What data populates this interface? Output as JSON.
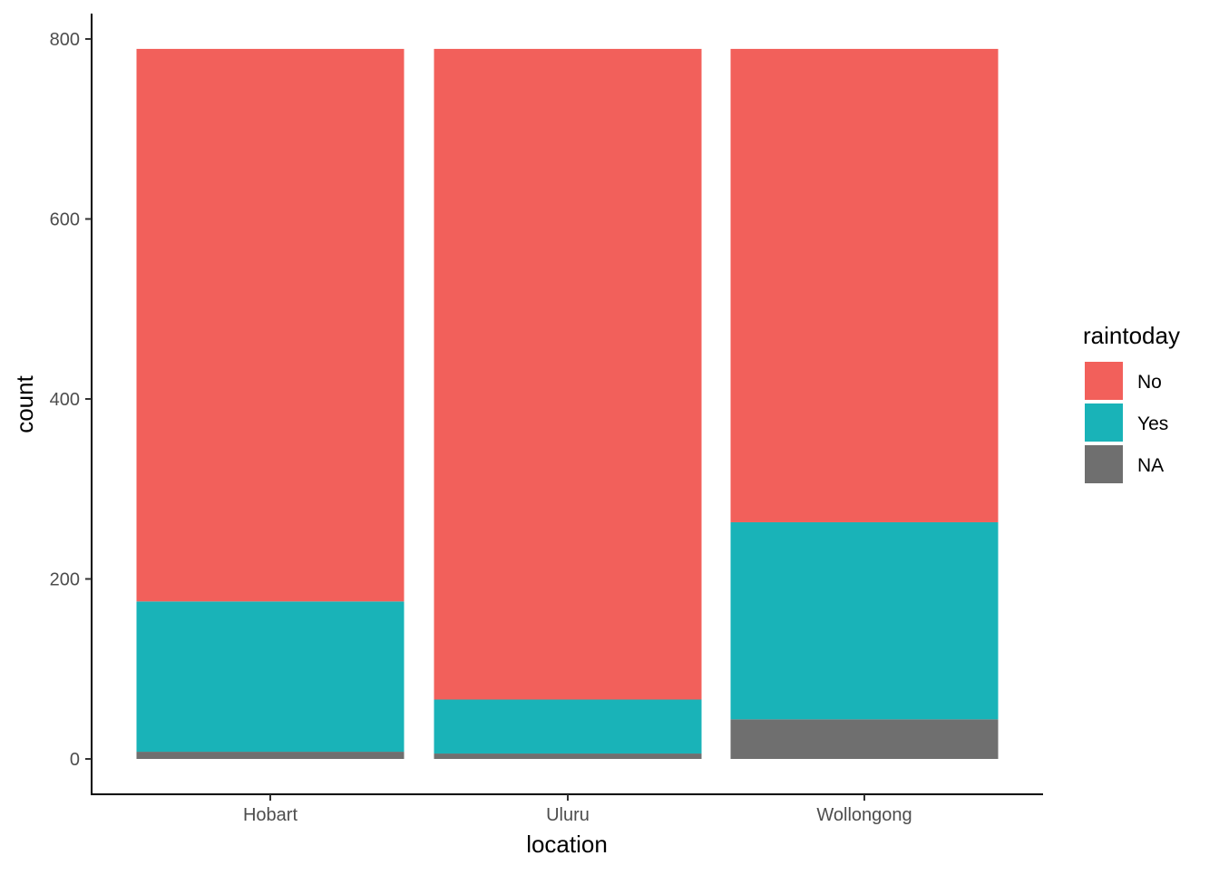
{
  "chart_data": {
    "type": "bar",
    "stacked": true,
    "categories": [
      "Hobart",
      "Uluru",
      "Wollongong"
    ],
    "series": [
      {
        "name": "NA",
        "color": "#6f6f6f",
        "values": [
          8,
          6,
          44
        ]
      },
      {
        "name": "Yes",
        "color": "#19b3b8",
        "values": [
          167,
          60,
          219
        ]
      },
      {
        "name": "No",
        "color": "#f2605b",
        "values": [
          614,
          723,
          526
        ]
      }
    ],
    "xlabel": "location",
    "ylabel": "count",
    "ylim": [
      0,
      800
    ],
    "yticks": [
      0,
      200,
      400,
      600,
      800
    ],
    "grid": false,
    "legend": {
      "title": "raintoday",
      "position": "right",
      "items": [
        {
          "label": "No",
          "color": "#f2605b"
        },
        {
          "label": "Yes",
          "color": "#19b3b8"
        },
        {
          "label": "NA",
          "color": "#6f6f6f"
        }
      ]
    }
  }
}
